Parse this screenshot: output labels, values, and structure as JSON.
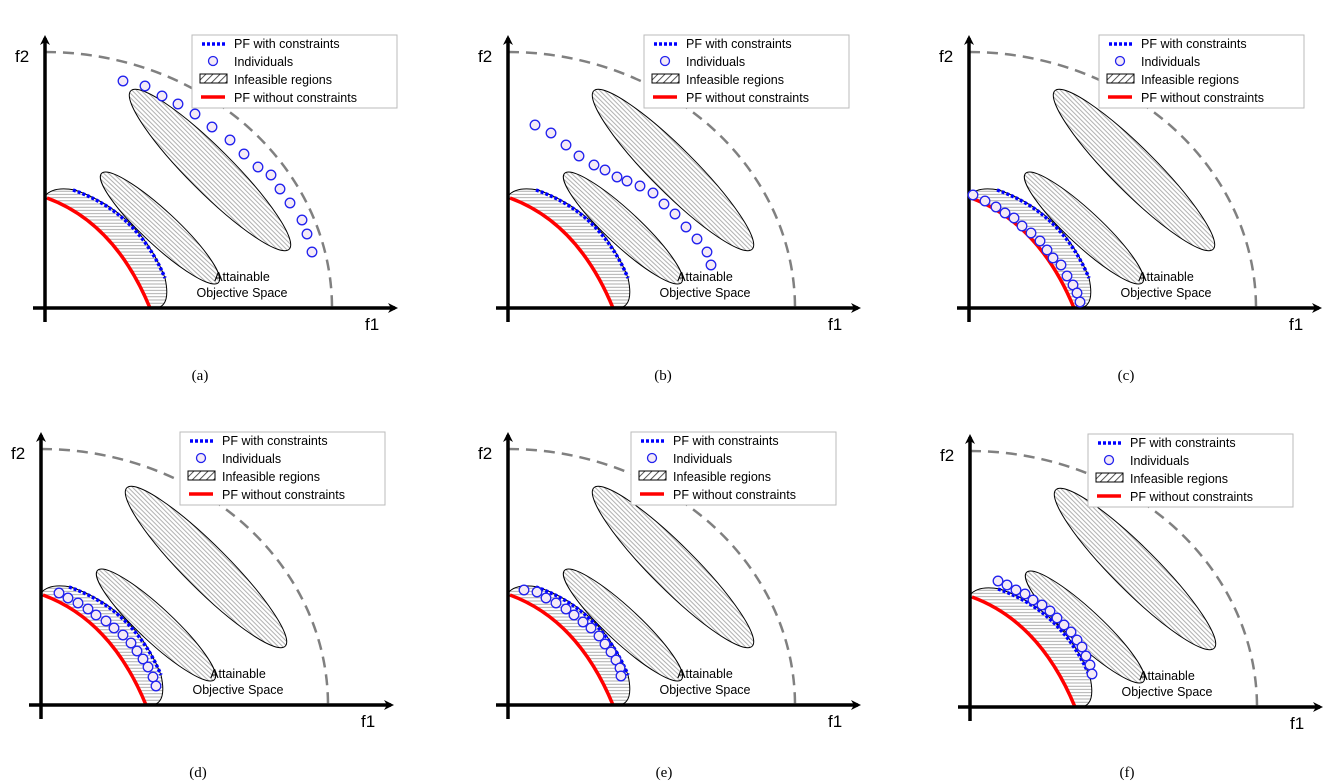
{
  "axes": {
    "x_label": "f1",
    "y_label": "f2"
  },
  "legend": {
    "pf_constrained": "PF with constraints",
    "individuals": "Individuals",
    "infeasible": "Infeasible regions",
    "pf_unconstrained": "PF without constraints"
  },
  "region_label": {
    "line1": "Attainable",
    "line2": "Objective Space"
  },
  "colors": {
    "pf_constrained": "#0000ff",
    "individuals_stroke": "#2222ee",
    "individuals_fill": "#f4eaf6",
    "pf_unconstrained": "#ff0000",
    "boundary": "#808080"
  },
  "panels": [
    {
      "caption": "(a)"
    },
    {
      "caption": "(b)"
    },
    {
      "caption": "(c)"
    },
    {
      "caption": "(d)"
    },
    {
      "caption": "(e)"
    },
    {
      "caption": "(f)"
    }
  ]
}
